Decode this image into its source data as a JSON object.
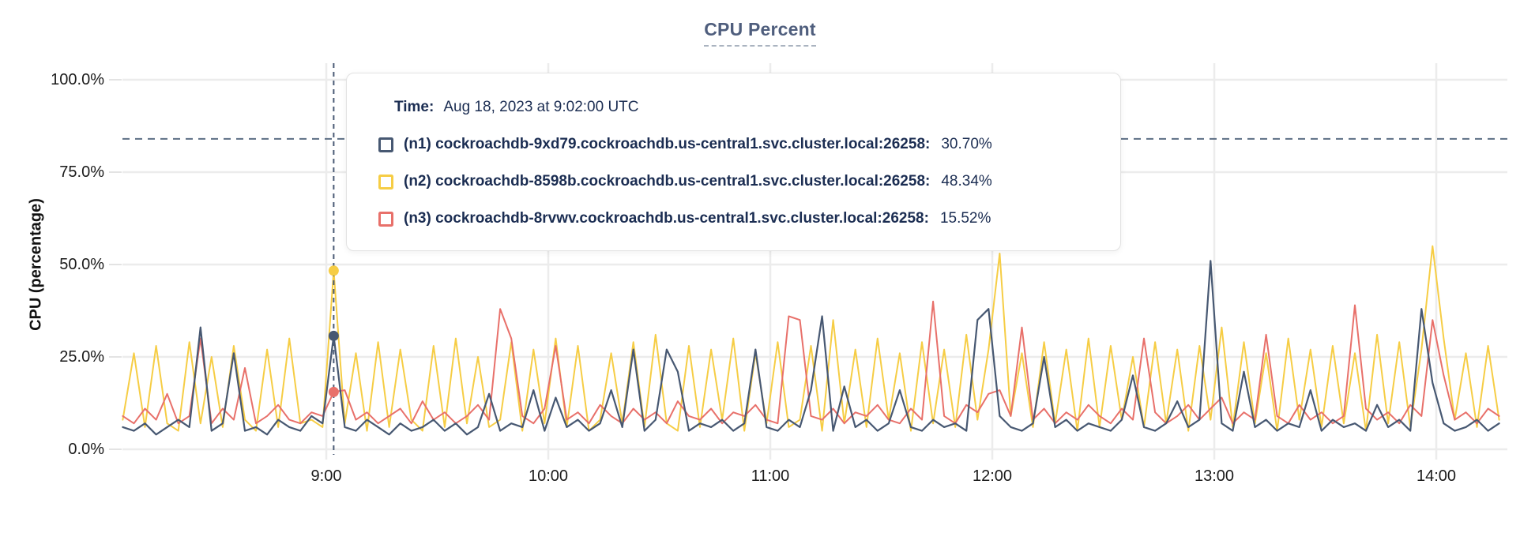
{
  "tooltip": {
    "time_label": "Time:",
    "time_value": "Aug 18, 2023 at 9:02:00 UTC"
  },
  "chart_data": {
    "type": "line",
    "title": "CPU Percent",
    "xlabel": "",
    "ylabel": "CPU (percentage)",
    "grid": true,
    "legend_position": "tooltip-overlay",
    "y_axis": {
      "range": [
        0,
        100
      ],
      "tick_values": [
        0,
        25,
        50,
        75,
        100
      ],
      "tick_labels": [
        "0.0%",
        "25.0%",
        "50.0%",
        "75.0%",
        "100.0%"
      ]
    },
    "x_axis": {
      "unit": "time (UTC)",
      "range_minutes": [
        485,
        857
      ],
      "tick_minutes": [
        540,
        600,
        660,
        720,
        780,
        840
      ],
      "tick_labels": [
        "9:00",
        "10:00",
        "11:00",
        "12:00",
        "13:00",
        "14:00"
      ]
    },
    "threshold_pct": 84,
    "hover": {
      "t_minutes": 542,
      "time_text": "Aug 18, 2023 at 9:02:00 UTC",
      "dot_values": {
        "n1": 30.7,
        "n2": 48.34,
        "n3": 15.52
      }
    },
    "t_start": 485,
    "t_step": 3,
    "series": [
      {
        "id": "n1",
        "color": "#475872",
        "z": 3,
        "tooltip_label": "(n1) cockroachdb-9xd79.cockroachdb.us-central1.svc.cluster.local:26258:",
        "tooltip_value": "30.70%",
        "values": [
          6,
          5,
          7,
          4,
          6,
          8,
          6,
          33,
          5,
          7,
          26,
          5,
          6,
          4,
          8,
          6,
          5,
          9,
          7,
          30.7,
          6,
          5,
          8,
          6,
          4,
          7,
          5,
          6,
          8,
          5,
          7,
          4,
          6,
          15,
          5,
          7,
          6,
          16,
          5,
          14,
          6,
          8,
          5,
          7,
          16,
          6,
          27,
          5,
          8,
          27,
          21,
          5,
          7,
          6,
          8,
          5,
          7,
          27,
          6,
          5,
          8,
          6,
          16,
          36,
          5,
          17,
          6,
          8,
          5,
          7,
          16,
          6,
          5,
          8,
          6,
          7,
          5,
          35,
          38,
          9,
          6,
          5,
          7,
          25,
          6,
          8,
          5,
          7,
          6,
          5,
          8,
          20,
          6,
          5,
          7,
          13,
          6,
          8,
          51,
          7,
          5,
          21,
          6,
          8,
          5,
          7,
          6,
          16,
          5,
          8,
          6,
          7,
          5,
          12,
          6,
          8,
          5,
          38,
          18,
          7,
          5,
          6,
          8,
          5,
          7
        ]
      },
      {
        "id": "n2",
        "color": "#f6cd45",
        "z": 1,
        "tooltip_label": "(n2) cockroachdb-8598b.cockroachdb.us-central1.svc.cluster.local:26258:",
        "tooltip_value": "48.34%",
        "values": [
          8,
          26,
          6,
          28,
          7,
          5,
          29,
          7,
          25,
          6,
          28,
          8,
          5,
          27,
          6,
          30,
          7,
          8,
          6,
          48.34,
          7,
          26,
          5,
          29,
          6,
          27,
          8,
          5,
          28,
          6,
          30,
          7,
          25,
          6,
          8,
          29,
          5,
          27,
          7,
          30,
          6,
          28,
          5,
          8,
          26,
          7,
          29,
          6,
          31,
          7,
          5,
          28,
          6,
          27,
          8,
          30,
          5,
          26,
          7,
          29,
          6,
          8,
          28,
          5,
          35,
          7,
          27,
          6,
          30,
          8,
          26,
          5,
          29,
          7,
          27,
          6,
          31,
          8,
          27,
          53,
          9,
          26,
          6,
          29,
          7,
          27,
          5,
          30,
          6,
          28,
          8,
          25,
          6,
          29,
          7,
          27,
          5,
          28,
          8,
          33,
          6,
          29,
          7,
          26,
          5,
          30,
          8,
          27,
          6,
          28,
          7,
          26,
          5,
          31,
          7,
          29,
          6,
          27,
          55,
          30,
          8,
          26,
          6,
          28,
          8
        ]
      },
      {
        "id": "n3",
        "color": "#e8706a",
        "z": 2,
        "tooltip_label": "(n3) cockroachdb-8rvwv.cockroachdb.us-central1.svc.cluster.local:26258:",
        "tooltip_value": "15.52%",
        "values": [
          9,
          7,
          11,
          8,
          15,
          7,
          9,
          30,
          7,
          11,
          8,
          22,
          7,
          9,
          12,
          8,
          7,
          10,
          9,
          15.52,
          16,
          8,
          10,
          7,
          9,
          11,
          7,
          13,
          8,
          10,
          7,
          9,
          12,
          8,
          38,
          30,
          9,
          7,
          11,
          28,
          8,
          10,
          7,
          12,
          9,
          7,
          11,
          8,
          10,
          7,
          13,
          9,
          8,
          11,
          7,
          10,
          9,
          12,
          8,
          7,
          36,
          35,
          9,
          8,
          11,
          7,
          10,
          9,
          12,
          8,
          7,
          11,
          8,
          40,
          9,
          7,
          12,
          10,
          15,
          16,
          9,
          33,
          8,
          11,
          7,
          10,
          8,
          12,
          9,
          7,
          11,
          8,
          30,
          10,
          7,
          9,
          12,
          8,
          11,
          14,
          7,
          10,
          8,
          31,
          9,
          7,
          12,
          8,
          10,
          7,
          9,
          39,
          11,
          8,
          10,
          7,
          12,
          9,
          35,
          20,
          8,
          10,
          7,
          11,
          9
        ]
      }
    ]
  },
  "colors": {
    "grid": "#ececec",
    "axis_text": "#1a1a1a",
    "title": "#4f5e7d",
    "tooltip_text": "#1b2d52",
    "threshold_line": "#5c6e84",
    "hover_line": "#4a5b75"
  }
}
